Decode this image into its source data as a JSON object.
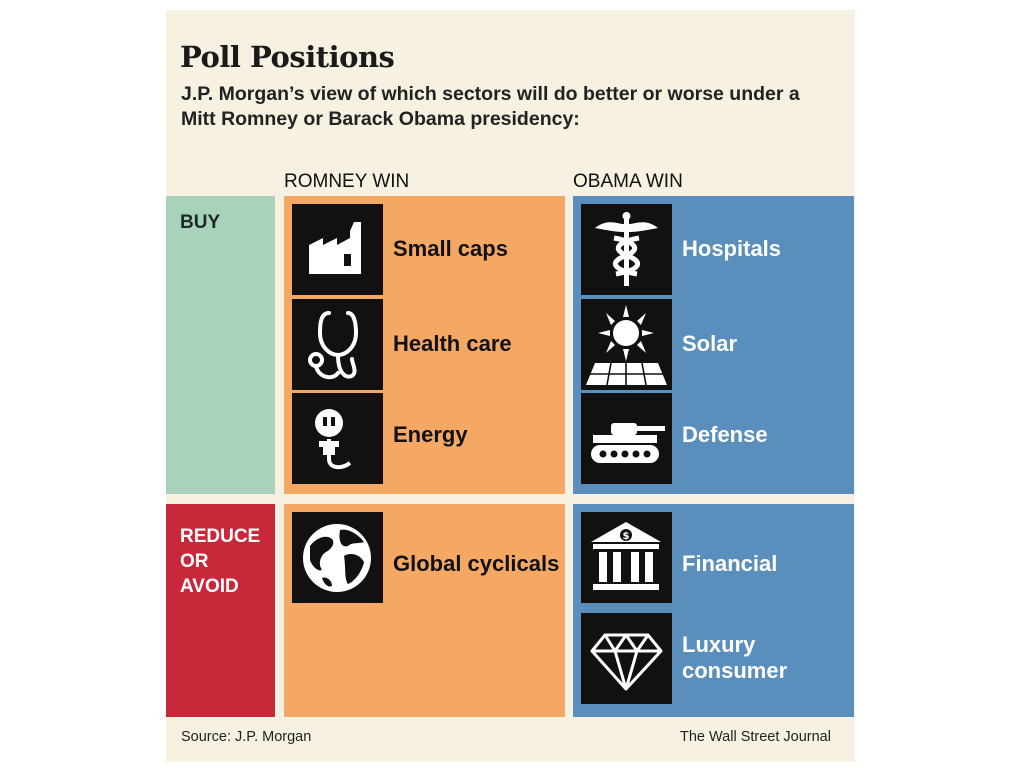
{
  "title": "Poll Positions",
  "subtitle": "J.P. Morgan’s view of which sectors will do better or worse under a Mitt Romney or Barack Obama presidency:",
  "columns": {
    "romney": "ROMNEY WIN",
    "obama": "OBAMA WIN"
  },
  "rows": {
    "buy": "BUY",
    "reduce": [
      "REDUCE",
      "OR",
      "AVOID"
    ]
  },
  "romney_buy": [
    {
      "label": "Small caps",
      "icon": "factory-icon"
    },
    {
      "label": "Health care",
      "icon": "stethoscope-icon"
    },
    {
      "label": "Energy",
      "icon": "electric-plug-icon"
    }
  ],
  "obama_buy": [
    {
      "label": "Hospitals",
      "icon": "caduceus-icon"
    },
    {
      "label": "Solar",
      "icon": "sun-solar-panel-icon"
    },
    {
      "label": "Defense",
      "icon": "tank-icon"
    }
  ],
  "romney_avoid": [
    {
      "label": "Global cyclicals",
      "icon": "globe-icon"
    }
  ],
  "obama_avoid": [
    {
      "label": "Financial",
      "icon": "bank-building-icon"
    },
    {
      "label": [
        "Luxury",
        "consumer"
      ],
      "icon": "diamond-icon"
    }
  ],
  "footer": {
    "source": "Source: J.P. Morgan",
    "credit": "The Wall Street Journal"
  },
  "colors": {
    "background": "#f7f1e1",
    "buy": "#a9d2bd",
    "reduce": "#c8283a",
    "romney": "#f4a864",
    "obama": "#5a8fbd",
    "tile": "#111111"
  }
}
